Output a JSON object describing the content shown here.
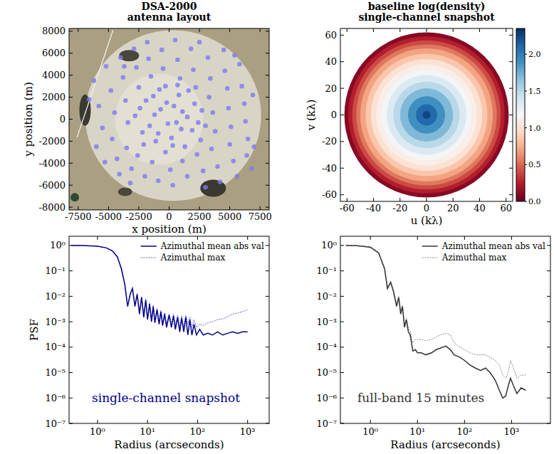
{
  "chart_data": [
    {
      "type": "scatter",
      "title": "DSA-2000\nantenna layout",
      "x_label": "x position (m)",
      "y_label": "y position (m)",
      "xlim": [
        -8250,
        8250
      ],
      "ylim": [
        -8250,
        8250
      ],
      "xticks": [
        -7500,
        -5000,
        -2500,
        0,
        2500,
        5000,
        7500
      ],
      "yticks": [
        -8000,
        -6000,
        -4000,
        -2000,
        0,
        2000,
        4000,
        6000,
        8000
      ],
      "color": "#7b7bf0",
      "marker": "circle",
      "points": [
        [
          -6200,
          3500
        ],
        [
          -5800,
          1200
        ],
        [
          -5500,
          -800
        ],
        [
          -6000,
          -2500
        ],
        [
          -5200,
          4800
        ],
        [
          -4800,
          2600
        ],
        [
          -4500,
          600
        ],
        [
          -4700,
          -1800
        ],
        [
          -4300,
          -3600
        ],
        [
          -4000,
          5600
        ],
        [
          -3800,
          3800
        ],
        [
          -3600,
          1700
        ],
        [
          -3400,
          -300
        ],
        [
          -3500,
          -2600
        ],
        [
          -3100,
          -4500
        ],
        [
          -2900,
          6400
        ],
        [
          -2700,
          4700
        ],
        [
          -2500,
          2900
        ],
        [
          -2400,
          1000
        ],
        [
          -2200,
          -1200
        ],
        [
          -2600,
          -3300
        ],
        [
          -2000,
          -5200
        ],
        [
          -1800,
          7000
        ],
        [
          -1700,
          5500
        ],
        [
          -1500,
          3900
        ],
        [
          -1300,
          2100
        ],
        [
          -1200,
          400
        ],
        [
          -1100,
          -2000
        ],
        [
          -1400,
          -3900
        ],
        [
          -900,
          -5600
        ],
        [
          -600,
          6300
        ],
        [
          -500,
          4600
        ],
        [
          -300,
          3000
        ],
        [
          -200,
          1500
        ],
        [
          -100,
          -400
        ],
        [
          200,
          -1700
        ],
        [
          -300,
          -3000
        ],
        [
          100,
          -4600
        ],
        [
          300,
          -6000
        ],
        [
          500,
          7200
        ],
        [
          700,
          5400
        ],
        [
          900,
          3700
        ],
        [
          800,
          2200
        ],
        [
          1100,
          700
        ],
        [
          1000,
          -900
        ],
        [
          1300,
          -2500
        ],
        [
          1100,
          -3800
        ],
        [
          1500,
          -5200
        ],
        [
          1800,
          6400
        ],
        [
          2000,
          4500
        ],
        [
          2200,
          2900
        ],
        [
          2100,
          1400
        ],
        [
          2400,
          -300
        ],
        [
          2600,
          -1900
        ],
        [
          2300,
          -3200
        ],
        [
          2800,
          -4700
        ],
        [
          3000,
          -6200
        ],
        [
          3200,
          5600
        ],
        [
          3400,
          3700
        ],
        [
          3300,
          2000
        ],
        [
          3600,
          600
        ],
        [
          3800,
          -1100
        ],
        [
          3500,
          -2700
        ],
        [
          4000,
          -4300
        ],
        [
          4200,
          -5700
        ],
        [
          4500,
          6300
        ],
        [
          4600,
          4400
        ],
        [
          4800,
          2800
        ],
        [
          4900,
          1000
        ],
        [
          5100,
          -700
        ],
        [
          5000,
          -2300
        ],
        [
          5300,
          -3800
        ],
        [
          5600,
          -5200
        ],
        [
          5800,
          5000
        ],
        [
          6000,
          3000
        ],
        [
          6200,
          1400
        ],
        [
          6300,
          -200
        ],
        [
          6500,
          -1800
        ],
        [
          6400,
          -3300
        ],
        [
          6800,
          -4500
        ],
        [
          -700,
          900
        ],
        [
          -1600,
          -600
        ],
        [
          600,
          -300
        ],
        [
          400,
          1200
        ],
        [
          -800,
          2700
        ],
        [
          1600,
          2600
        ],
        [
          1900,
          -1000
        ],
        [
          -1900,
          1700
        ],
        [
          2700,
          800
        ],
        [
          -2800,
          300
        ],
        [
          300,
          -2400
        ],
        [
          -900,
          -1300
        ],
        [
          1500,
          200
        ],
        [
          700,
          3100
        ],
        [
          -2100,
          -2300
        ],
        [
          3000,
          -600
        ],
        [
          -3700,
          4800
        ],
        [
          5400,
          5800
        ],
        [
          -5300,
          -3900
        ],
        [
          7000,
          -2500
        ],
        [
          6900,
          2200
        ],
        [
          -6600,
          1800
        ],
        [
          -4100,
          -5000
        ],
        [
          2500,
          7000
        ],
        [
          -3200,
          -5800
        ]
      ]
    },
    {
      "type": "heatmap",
      "title": "baseline log(density)\nsingle-channel snapshot",
      "x_label": "u (kλ)",
      "y_label": "v (kλ)",
      "xlim": [
        -65,
        65
      ],
      "ylim": [
        -65,
        65
      ],
      "xticks": [
        -60,
        -40,
        -20,
        0,
        20,
        40,
        60
      ],
      "yticks": [
        -60,
        -40,
        -20,
        0,
        20,
        40,
        60
      ],
      "radius": [
        62,
        59,
        56,
        53,
        50,
        46,
        42,
        38,
        34,
        30,
        25,
        20,
        14,
        8,
        3
      ],
      "values": [
        0.1,
        0.25,
        0.4,
        0.55,
        0.7,
        0.85,
        1.0,
        1.1,
        1.2,
        1.35,
        1.5,
        1.7,
        1.9,
        2.1,
        2.25
      ],
      "colorbar": {
        "range": [
          0,
          2.35
        ],
        "ticks": [
          {
            "value": 0,
            "label": "0.0"
          },
          {
            "value": 0.5,
            "label": "0.5"
          },
          {
            "value": 1,
            "label": "1.0"
          },
          {
            "value": 1.5,
            "label": "1.5"
          },
          {
            "value": 2,
            "label": "2.0"
          }
        ]
      }
    },
    {
      "type": "line",
      "log": true,
      "annotation": "single-channel snapshot",
      "x_label": "Radius (arcseconds)",
      "y_label": "PSF",
      "xlim": [
        0.27,
        2700
      ],
      "ylim": [
        1e-07,
        2.3
      ],
      "xticks": [
        {
          "value": 1,
          "label": "10⁰"
        },
        {
          "value": 10,
          "label": "10¹"
        },
        {
          "value": 100,
          "label": "10²"
        },
        {
          "value": 1000,
          "label": "10³"
        }
      ],
      "yticks": [
        {
          "value": 1e-07,
          "label": "10⁻⁷"
        },
        {
          "value": 1e-06,
          "label": "10⁻⁶"
        },
        {
          "value": 1e-05,
          "label": "10⁻⁵"
        },
        {
          "value": 0.0001,
          "label": "10⁻⁴"
        },
        {
          "value": 0.001,
          "label": "10⁻³"
        },
        {
          "value": 0.01,
          "label": "10⁻²"
        },
        {
          "value": 0.1,
          "label": "10⁻¹"
        },
        {
          "value": 1,
          "label": "10⁰"
        }
      ],
      "legend": "upper right",
      "series": [
        {
          "name": "Azimuthal mean abs val",
          "color": "#00008b",
          "line_style": "solid",
          "x": [
            0.3,
            0.5,
            1,
            1.5,
            2,
            2.5,
            3,
            3.5,
            4,
            4.5,
            5,
            5.6,
            6.2,
            6.9,
            7.6,
            8.4,
            9.2,
            10,
            11,
            12,
            13,
            14,
            15.5,
            17,
            18.5,
            20,
            22,
            24,
            27,
            30,
            33,
            36,
            40,
            44,
            48,
            53,
            58,
            64,
            70,
            77,
            85,
            95,
            110,
            130,
            160,
            200,
            250,
            320,
            400,
            500,
            630,
            800,
            1000
          ],
          "values": [
            1.0,
            0.99,
            0.93,
            0.8,
            0.6,
            0.35,
            0.12,
            0.03,
            0.004,
            0.012,
            0.02,
            0.004,
            0.012,
            0.002,
            0.009,
            0.0015,
            0.007,
            0.0012,
            0.005,
            0.001,
            0.004,
            0.0009,
            0.003,
            0.0008,
            0.0025,
            0.0007,
            0.002,
            0.0006,
            0.0018,
            0.0006,
            0.0017,
            0.0005,
            0.0015,
            0.0004,
            0.0014,
            0.0004,
            0.0015,
            0.0003,
            0.0012,
            0.0003,
            0.0008,
            0.0003,
            0.0005,
            0.0003,
            0.00035,
            0.0003,
            0.0004,
            0.0003,
            0.00035,
            0.0004,
            0.00035,
            0.0004,
            0.0004
          ]
        },
        {
          "name": "Azimuthal max",
          "color": "#5a5ad6",
          "line_style": "dotted",
          "x": [
            0.3,
            0.5,
            1,
            1.5,
            2,
            2.5,
            3,
            3.5,
            4,
            4.5,
            5,
            5.6,
            6.2,
            6.9,
            7.6,
            8.4,
            9.2,
            10,
            11,
            12,
            13,
            14,
            15.5,
            17,
            18.5,
            20,
            22,
            24,
            27,
            30,
            33,
            36,
            40,
            44,
            48,
            53,
            58,
            64,
            70,
            77,
            85,
            95,
            110,
            130,
            160,
            200,
            250,
            320,
            400,
            500,
            630,
            800,
            1000
          ],
          "values": [
            1.0,
            0.99,
            0.94,
            0.82,
            0.62,
            0.37,
            0.13,
            0.033,
            0.0045,
            0.013,
            0.022,
            0.0045,
            0.013,
            0.0025,
            0.01,
            0.0018,
            0.008,
            0.0015,
            0.0055,
            0.0012,
            0.0045,
            0.0011,
            0.0034,
            0.001,
            0.0028,
            0.0009,
            0.0023,
            0.0008,
            0.0021,
            0.0008,
            0.002,
            0.0007,
            0.0018,
            0.0006,
            0.0017,
            0.0006,
            0.0018,
            0.0008,
            0.0015,
            0.0006,
            0.0012,
            0.0006,
            0.0008,
            0.0007,
            0.0009,
            0.001,
            0.0012,
            0.0013,
            0.0016,
            0.002,
            0.0022,
            0.0025,
            0.003
          ]
        }
      ]
    },
    {
      "type": "line",
      "log": true,
      "annotation": "full-band 15 minutes",
      "x_label": "Radius (arcseconds)",
      "xlim": [
        0.23,
        6700
      ],
      "ylim": [
        1e-07,
        2.3
      ],
      "xticks": [
        {
          "value": 1,
          "label": "10⁰"
        },
        {
          "value": 10,
          "label": "10¹"
        },
        {
          "value": 100,
          "label": "10²"
        },
        {
          "value": 1000,
          "label": "10³"
        }
      ],
      "yticks": [
        {
          "value": 1e-07,
          "label": "10⁻⁷"
        },
        {
          "value": 1e-06,
          "label": "10⁻⁶"
        },
        {
          "value": 1e-05,
          "label": "10⁻⁵"
        },
        {
          "value": 0.0001,
          "label": "10⁻⁴"
        },
        {
          "value": 0.001,
          "label": "10⁻³"
        },
        {
          "value": 0.01,
          "label": "10⁻²"
        },
        {
          "value": 0.1,
          "label": "10⁻¹"
        },
        {
          "value": 1,
          "label": "10⁰"
        }
      ],
      "legend": "upper right",
      "series": [
        {
          "name": "Azimuthal mean abs val",
          "color": "#333333",
          "line_style": "solid",
          "x": [
            0.3,
            0.5,
            1,
            1.5,
            2,
            2.3,
            2.7,
            3.1,
            3.6,
            4,
            4.4,
            4.8,
            5.3,
            5.8,
            6.4,
            7,
            8,
            9,
            10,
            12,
            15,
            20,
            25,
            30,
            40,
            50,
            60,
            80,
            100,
            130,
            170,
            220,
            280,
            350,
            450,
            550,
            650,
            750,
            850,
            950,
            1100,
            1300,
            1600,
            2000
          ],
          "values": [
            1.0,
            0.98,
            0.85,
            0.5,
            0.12,
            0.02,
            0.035,
            0.015,
            0.004,
            0.009,
            0.002,
            0.004,
            0.0006,
            0.0012,
            0.0004,
            0.0003,
            7e-05,
            8e-05,
            6e-05,
            6e-05,
            5e-05,
            6e-05,
            8e-05,
            9e-05,
            0.00011,
            8e-05,
            5e-05,
            4e-05,
            3e-05,
            2e-05,
            1.5e-05,
            1.2e-05,
            1.5e-05,
            1e-05,
            5e-06,
            2e-06,
            1e-06,
            1.2e-06,
            3e-06,
            6e-06,
            3e-06,
            1.5e-06,
            2.5e-06,
            2e-06
          ]
        },
        {
          "name": "Azimuthal max",
          "color": "#888888",
          "line_style": "dotted",
          "x": [
            0.3,
            0.5,
            1,
            1.5,
            2,
            2.3,
            2.7,
            3.1,
            3.6,
            4,
            4.4,
            4.8,
            5.3,
            5.8,
            6.4,
            7,
            8,
            9,
            10,
            12,
            15,
            20,
            25,
            30,
            40,
            50,
            60,
            80,
            100,
            130,
            170,
            220,
            280,
            350,
            450,
            550,
            650,
            750,
            850,
            950,
            1100,
            1300,
            1600,
            2000
          ],
          "values": [
            1.0,
            0.99,
            0.9,
            0.55,
            0.14,
            0.025,
            0.04,
            0.018,
            0.005,
            0.01,
            0.0025,
            0.0045,
            0.0008,
            0.0014,
            0.0006,
            0.0004,
            0.00015,
            0.0002,
            0.0002,
            0.0002,
            0.00018,
            0.0002,
            0.00025,
            0.0003,
            0.00035,
            0.0003,
            0.00015,
            0.0001,
            8e-05,
            6e-05,
            5e-05,
            5e-05,
            5e-05,
            4e-05,
            3e-05,
            2e-05,
            8e-06,
            6e-06,
            1e-05,
            3e-05,
            1.5e-05,
            6e-06,
            8e-06,
            8e-06
          ]
        }
      ]
    }
  ]
}
